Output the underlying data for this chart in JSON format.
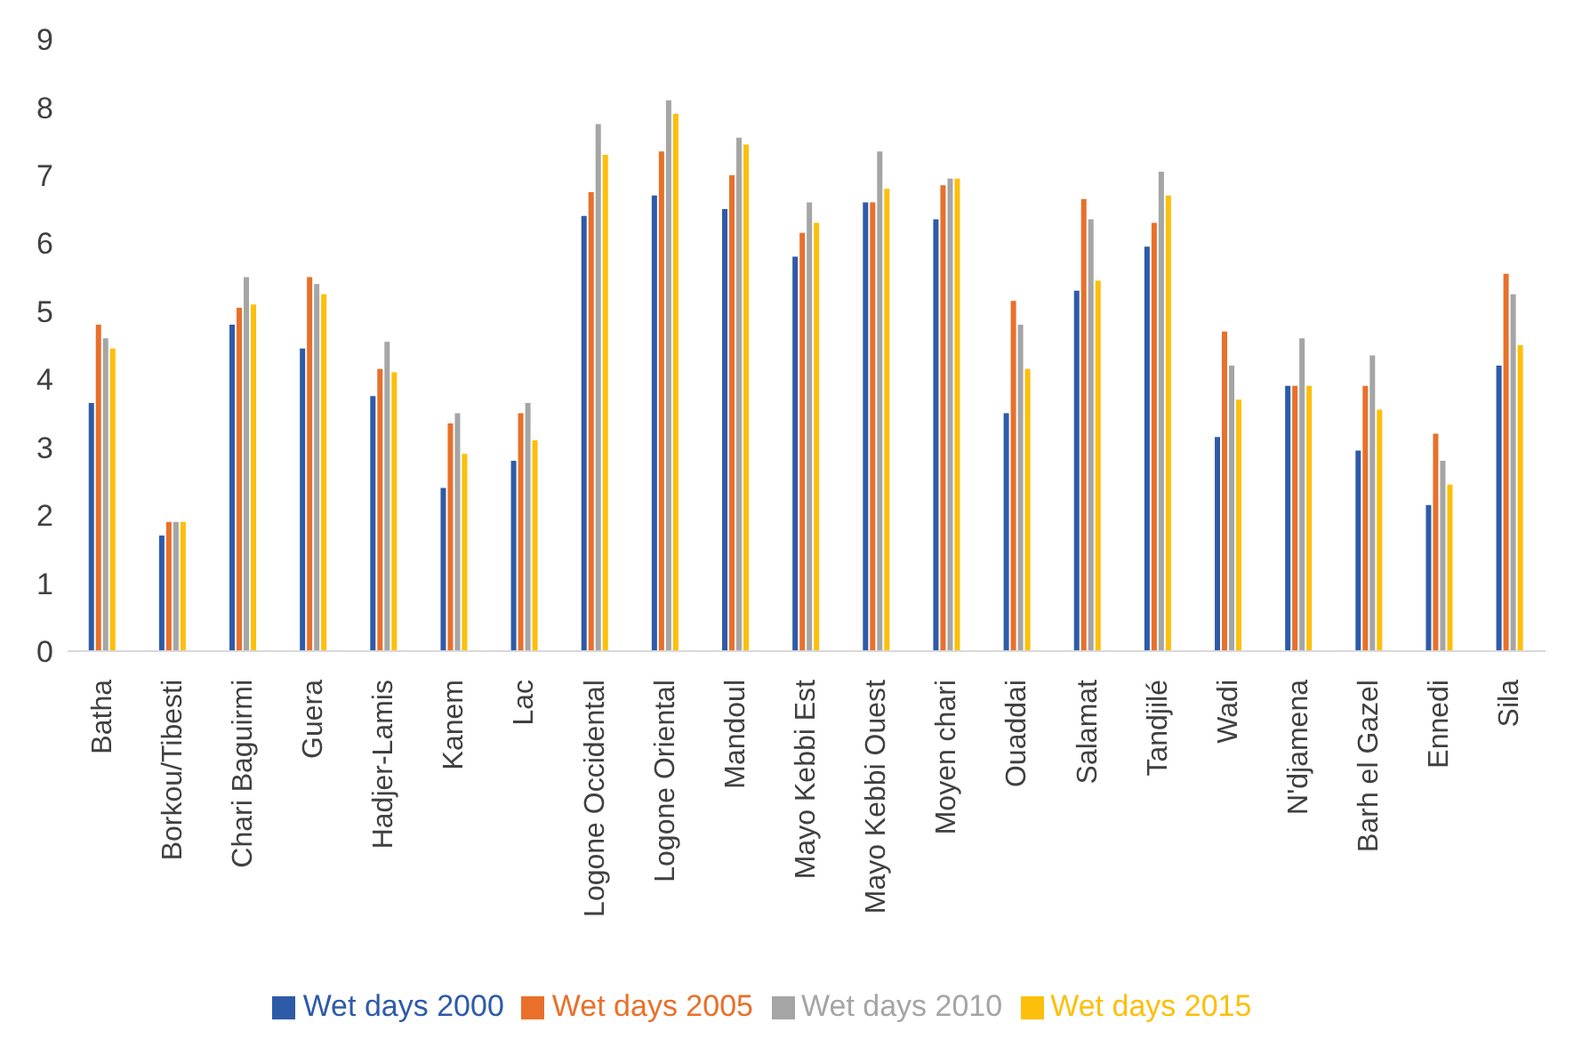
{
  "chart_data": {
    "type": "bar",
    "categories": [
      "Batha",
      "Borkou/Tibesti",
      "Chari Baguirmi",
      "Guera",
      "Hadjer-Lamis",
      "Kanem",
      "Lac",
      "Logone Occidental",
      "Logone Oriental",
      "Mandoul",
      "Mayo Kebbi Est",
      "Mayo Kebbi Ouest",
      "Moyen chari",
      "Ouaddai",
      "Salamat",
      "Tandjilé",
      "Wadi",
      "N'djamena",
      "Barh el Gazel",
      "Ennedi",
      "Sila"
    ],
    "series": [
      {
        "name": "Wet days 2000",
        "color": "#2e5ba8",
        "values": [
          3.65,
          1.7,
          4.8,
          4.45,
          3.75,
          2.4,
          2.8,
          6.4,
          6.7,
          6.5,
          5.8,
          6.6,
          6.35,
          3.5,
          5.3,
          5.95,
          3.15,
          3.9,
          2.95,
          2.15,
          4.2
        ]
      },
      {
        "name": "Wet days 2005",
        "color": "#e8702a",
        "values": [
          4.8,
          1.9,
          5.05,
          5.5,
          4.15,
          3.35,
          3.5,
          6.75,
          7.35,
          7.0,
          6.15,
          6.6,
          6.85,
          5.15,
          6.65,
          6.3,
          4.7,
          3.9,
          3.9,
          3.2,
          5.55
        ]
      },
      {
        "name": "Wet days 2010",
        "color": "#a5a5a5",
        "values": [
          4.6,
          1.9,
          5.5,
          5.4,
          4.55,
          3.5,
          3.65,
          7.75,
          8.1,
          7.55,
          6.6,
          7.35,
          6.95,
          4.8,
          6.35,
          7.05,
          4.2,
          4.6,
          4.35,
          2.8,
          5.25
        ]
      },
      {
        "name": "Wet days 2015",
        "color": "#fcbf0a",
        "values": [
          4.45,
          1.9,
          5.1,
          5.25,
          4.1,
          2.9,
          3.1,
          7.3,
          7.9,
          7.45,
          6.3,
          6.8,
          6.95,
          4.15,
          5.45,
          6.7,
          3.7,
          3.9,
          3.55,
          2.45,
          4.5
        ]
      }
    ],
    "ylim": [
      0,
      9
    ],
    "yticks": [
      0,
      1,
      2,
      3,
      4,
      5,
      6,
      7,
      8,
      9
    ],
    "grid": false,
    "legend": "bottom"
  }
}
